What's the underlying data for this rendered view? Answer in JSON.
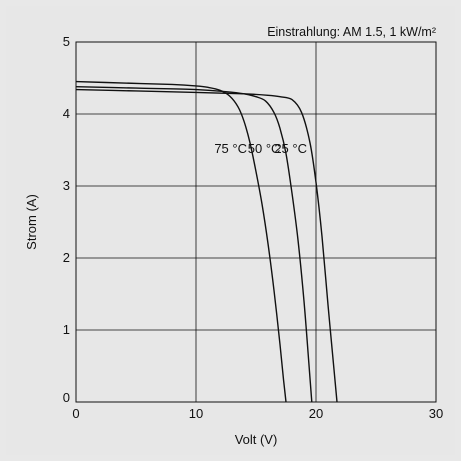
{
  "chart_data": {
    "type": "line",
    "title": "",
    "annotation_top": "Einstrahlung: AM 1.5, 1 kW/m²",
    "xlabel": "Volt (V)",
    "ylabel": "Strom (A)",
    "xlim": [
      0,
      30
    ],
    "ylim": [
      0,
      5
    ],
    "xticks": [
      0,
      10,
      20,
      30
    ],
    "yticks": [
      0,
      1,
      2,
      3,
      4,
      5
    ],
    "grid": true,
    "series": [
      {
        "name": "25 °C",
        "x": [
          0,
          5,
          10,
          14,
          16,
          17,
          18,
          18.8,
          19.5,
          20,
          20.5,
          21,
          21.5,
          21.75
        ],
        "y": [
          4.34,
          4.32,
          4.3,
          4.28,
          4.26,
          4.24,
          4.2,
          4.02,
          3.6,
          3.05,
          2.3,
          1.35,
          0.45,
          0
        ]
      },
      {
        "name": "50 °C",
        "x": [
          0,
          5,
          10,
          12.5,
          14,
          15,
          15.8,
          16.5,
          17,
          17.5,
          18,
          18.5,
          19,
          19.4,
          19.65
        ],
        "y": [
          4.38,
          4.36,
          4.34,
          4.31,
          4.28,
          4.24,
          4.18,
          4.02,
          3.8,
          3.45,
          2.9,
          2.25,
          1.4,
          0.55,
          0
        ]
      },
      {
        "name": "75 °C",
        "x": [
          0,
          4,
          8,
          10,
          11,
          12,
          12.8,
          13.5,
          14,
          14.5,
          15,
          15.5,
          16,
          16.5,
          17,
          17.3,
          17.5
        ],
        "y": [
          4.45,
          4.43,
          4.41,
          4.39,
          4.37,
          4.33,
          4.25,
          4.1,
          3.9,
          3.6,
          3.2,
          2.75,
          2.2,
          1.55,
          0.8,
          0.3,
          0
        ]
      }
    ]
  }
}
